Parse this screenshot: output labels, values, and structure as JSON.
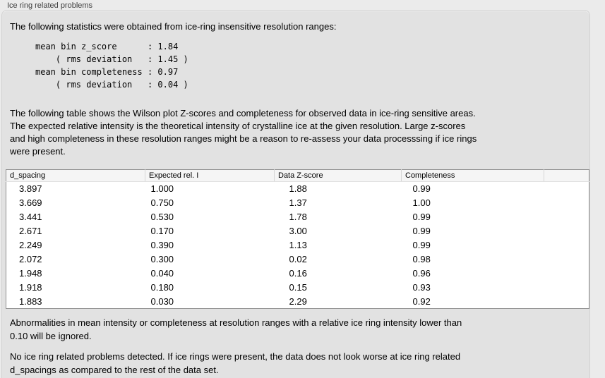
{
  "panel": {
    "title": "Ice ring related problems"
  },
  "intro": "The following statistics were obtained from ice-ring insensitive resolution ranges:",
  "stats_block": "mean bin z_score      : 1.84\n    ( rms deviation   : 1.45 )\nmean bin completeness : 0.97\n    ( rms deviation   : 0.04 )",
  "table_description": "The following table shows the Wilson plot Z-scores and completeness for observed data in ice-ring sensitive areas.\nThe expected relative intensity is the theoretical intensity of crystalline ice at the given resolution. Large z-scores\nand high completeness in these resolution ranges might be a reason to re-assess your data processsing if ice rings\nwere present.",
  "table": {
    "columns": [
      "d_spacing",
      "Expected rel. I",
      "Data Z-score",
      "Completeness"
    ],
    "rows": [
      [
        "3.897",
        "1.000",
        "1.88",
        "0.99"
      ],
      [
        "3.669",
        "0.750",
        "1.37",
        "1.00"
      ],
      [
        "3.441",
        "0.530",
        "1.78",
        "0.99"
      ],
      [
        "2.671",
        "0.170",
        "3.00",
        "0.99"
      ],
      [
        "2.249",
        "0.390",
        "1.13",
        "0.99"
      ],
      [
        "2.072",
        "0.300",
        "0.02",
        "0.98"
      ],
      [
        "1.948",
        "0.040",
        "0.16",
        "0.96"
      ],
      [
        "1.918",
        "0.180",
        "0.15",
        "0.93"
      ],
      [
        "1.883",
        "0.030",
        "2.29",
        "0.92"
      ]
    ]
  },
  "ignore_note": "Abnormalities in mean intensity or completeness at resolution ranges with a relative ice ring intensity lower than\n0.10 will be ignored.",
  "conclusion": "No ice ring related problems detected. If ice rings were present, the data does not look worse at ice ring related\nd_spacings as compared to the rest of the data set."
}
